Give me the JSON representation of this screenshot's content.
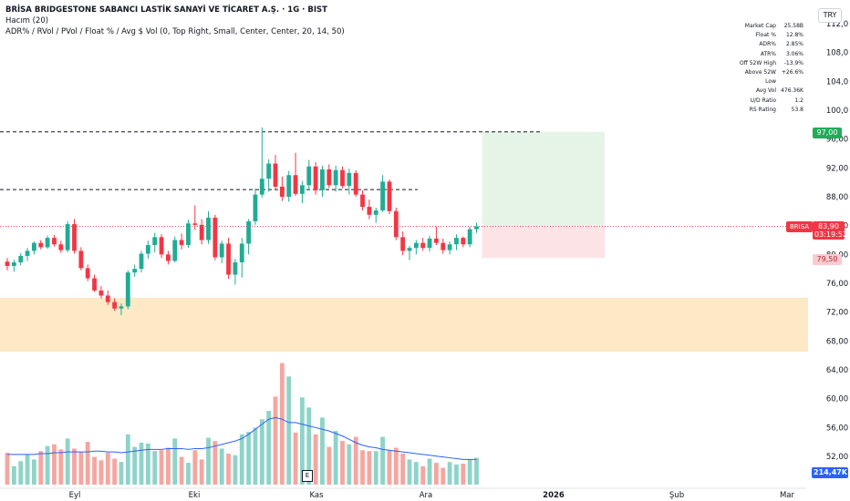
{
  "header": {
    "title": "BRİSA BRIDGESTONE SABANCI LASTİK SANAYİ VE TİCARET A.Ş. · 1G · BIST",
    "volume_indicator": "Hacım (20)",
    "adr_indicator": "ADR% / RVol / PVol / Float % / Avg $ Vol (0, Top Right, Small, Center, Center, 20, 14, 50)"
  },
  "currency": "TRY",
  "stats": [
    {
      "label": "Market Cap",
      "value": "25.58B"
    },
    {
      "label": "Float %",
      "value": "12.8%"
    },
    {
      "label": "ADR%",
      "value": "2.85%"
    },
    {
      "label": "ATR%",
      "value": "3.06%"
    },
    {
      "label": "Off 52W High",
      "value": "-13.9%"
    },
    {
      "label": "Above 52W Low",
      "value": "+26.6%"
    },
    {
      "label": "Avg Vol",
      "value": "476.36K"
    },
    {
      "label": "U/D Ratio",
      "value": "1.2"
    },
    {
      "label": "RS Rating",
      "value": "53.8"
    }
  ],
  "tags": {
    "target": "97,00",
    "stop": "79,50",
    "symbol": "BRISA",
    "price": "83,90",
    "countdown": "03:19:52",
    "volume": "214,47K",
    "earnings_marker": "E"
  },
  "colors": {
    "up": "#22ab94",
    "down": "#f23645",
    "up_vol": "#8fd3c8",
    "down_vol": "#f4a6a0",
    "ma": "#2962ff",
    "zone": "#fde9c5",
    "target_zone": "#e6f4e8",
    "stop_zone": "#fce4e6"
  },
  "chart_data": {
    "type": "candlestick",
    "y_ticks": [
      "112,0",
      "108,0",
      "104,0",
      "100,0",
      "96,00",
      "92,00",
      "88,00",
      "84,00",
      "80,00",
      "76,00",
      "72,00",
      "68,00",
      "64,00",
      "60,00",
      "56,00",
      "52,00"
    ],
    "x_ticks": [
      "Eyl",
      "Eki",
      "Kas",
      "Ara",
      "2026",
      "Şub",
      "Mar"
    ],
    "ylim": [
      50,
      113
    ],
    "levels": {
      "resistance_1": 97.0,
      "resistance_2": 89.0,
      "last_price": 83.9,
      "target": 97.0,
      "stop": 79.5
    },
    "support_zone": [
      66.5,
      74.0
    ],
    "candles": [
      [
        79.0,
        79.5,
        77.8,
        78.4
      ],
      [
        78.4,
        79.3,
        77.6,
        78.9
      ],
      [
        78.9,
        80.2,
        78.5,
        79.8
      ],
      [
        79.8,
        80.9,
        79.1,
        80.5
      ],
      [
        80.5,
        81.8,
        80.0,
        81.6
      ],
      [
        81.6,
        82.0,
        80.7,
        81.0
      ],
      [
        81.0,
        82.6,
        80.8,
        82.3
      ],
      [
        82.3,
        82.7,
        81.1,
        81.4
      ],
      [
        81.4,
        81.9,
        80.2,
        80.6
      ],
      [
        80.6,
        84.6,
        80.3,
        84.2
      ],
      [
        84.2,
        84.9,
        80.1,
        80.5
      ],
      [
        80.5,
        81.0,
        77.8,
        78.1
      ],
      [
        78.1,
        78.6,
        76.3,
        76.7
      ],
      [
        76.7,
        77.2,
        74.8,
        75.0
      ],
      [
        75.0,
        75.6,
        73.9,
        74.3
      ],
      [
        74.3,
        75.0,
        73.0,
        73.4
      ],
      [
        73.4,
        73.9,
        72.2,
        72.5
      ],
      [
        72.5,
        73.2,
        71.6,
        72.8
      ],
      [
        72.8,
        77.8,
        72.4,
        77.5
      ],
      [
        77.5,
        78.6,
        76.9,
        78.0
      ],
      [
        78.0,
        80.5,
        77.5,
        80.1
      ],
      [
        80.1,
        81.9,
        79.4,
        81.3
      ],
      [
        81.3,
        83.0,
        80.3,
        82.4
      ],
      [
        82.4,
        82.8,
        79.5,
        80.0
      ],
      [
        80.0,
        80.5,
        78.6,
        79.1
      ],
      [
        79.1,
        82.5,
        78.9,
        82.0
      ],
      [
        82.0,
        82.9,
        80.7,
        81.3
      ],
      [
        81.3,
        84.8,
        80.9,
        84.3
      ],
      [
        84.3,
        86.8,
        83.4,
        84.1
      ],
      [
        84.1,
        84.9,
        81.4,
        82.0
      ],
      [
        82.0,
        86.0,
        81.5,
        85.1
      ],
      [
        85.1,
        85.5,
        79.2,
        79.6
      ],
      [
        79.6,
        81.9,
        78.8,
        81.5
      ],
      [
        81.5,
        82.3,
        76.6,
        77.2
      ],
      [
        77.2,
        79.4,
        75.8,
        78.9
      ],
      [
        78.9,
        82.3,
        76.8,
        81.5
      ],
      [
        81.5,
        84.9,
        80.0,
        84.6
      ],
      [
        84.6,
        89.1,
        84.1,
        88.3
      ],
      [
        88.3,
        97.6,
        87.9,
        90.5
      ],
      [
        90.5,
        93.2,
        88.7,
        92.6
      ],
      [
        92.6,
        93.8,
        89.0,
        89.4
      ],
      [
        89.4,
        90.8,
        87.4,
        88.0
      ],
      [
        88.0,
        91.6,
        87.3,
        91.0
      ],
      [
        91.0,
        94.1,
        88.1,
        88.4
      ],
      [
        88.4,
        90.2,
        87.1,
        89.6
      ],
      [
        89.6,
        93.1,
        88.9,
        92.2
      ],
      [
        92.2,
        92.8,
        88.3,
        88.9
      ],
      [
        88.9,
        92.3,
        88.0,
        91.8
      ],
      [
        91.8,
        92.5,
        89.2,
        89.6
      ],
      [
        89.6,
        92.3,
        88.7,
        91.7
      ],
      [
        91.7,
        92.2,
        89.2,
        89.5
      ],
      [
        89.5,
        91.9,
        88.3,
        91.3
      ],
      [
        91.3,
        91.7,
        88.0,
        88.3
      ],
      [
        88.3,
        88.9,
        86.1,
        86.6
      ],
      [
        86.6,
        87.6,
        84.9,
        85.5
      ],
      [
        85.5,
        86.5,
        84.4,
        86.1
      ],
      [
        86.1,
        91.0,
        85.9,
        90.1
      ],
      [
        90.1,
        90.4,
        85.6,
        86.0
      ],
      [
        86.0,
        86.5,
        82.0,
        82.4
      ],
      [
        82.4,
        83.2,
        79.9,
        80.5
      ],
      [
        80.5,
        81.2,
        79.2,
        80.9
      ],
      [
        80.9,
        82.0,
        80.0,
        81.6
      ],
      [
        81.6,
        82.3,
        80.5,
        80.9
      ],
      [
        80.9,
        82.6,
        80.4,
        82.2
      ],
      [
        82.2,
        83.9,
        81.3,
        81.6
      ],
      [
        81.6,
        82.2,
        80.1,
        80.6
      ],
      [
        80.6,
        81.8,
        80.0,
        81.4
      ],
      [
        81.4,
        82.8,
        80.6,
        82.3
      ],
      [
        82.3,
        82.5,
        81.0,
        81.4
      ],
      [
        81.4,
        83.8,
        81.0,
        83.5
      ],
      [
        83.5,
        84.4,
        83.0,
        83.9
      ]
    ],
    "volume": [
      38,
      22,
      28,
      36,
      30,
      40,
      46,
      48,
      42,
      55,
      43,
      39,
      51,
      33,
      29,
      38,
      31,
      27,
      60,
      45,
      50,
      49,
      40,
      41,
      44,
      55,
      33,
      26,
      41,
      30,
      56,
      52,
      43,
      37,
      35,
      60,
      63,
      68,
      78,
      88,
      105,
      145,
      129,
      62,
      104,
      92,
      60,
      80,
      45,
      64,
      52,
      48,
      57,
      41,
      40,
      40,
      57,
      41,
      44,
      37,
      30,
      27,
      22,
      31,
      26,
      20,
      27,
      24,
      25,
      30,
      32
    ],
    "volume_ma": [
      36,
      36,
      36,
      36,
      36,
      37,
      37,
      38,
      38,
      39,
      39,
      39,
      39,
      40,
      40,
      39,
      39,
      38,
      39,
      40,
      41,
      42,
      42,
      42,
      43,
      43,
      43,
      42,
      43,
      43,
      44,
      46,
      48,
      50,
      52,
      55,
      60,
      66,
      72,
      78,
      80,
      78,
      74,
      74,
      72,
      70,
      68,
      66,
      64,
      61,
      58,
      54,
      50,
      47,
      45,
      44,
      42,
      41,
      40,
      39,
      38,
      37,
      36,
      35,
      34,
      33,
      32,
      31,
      30,
      30,
      30
    ],
    "volume_ticks": [
      "214,47K"
    ]
  }
}
